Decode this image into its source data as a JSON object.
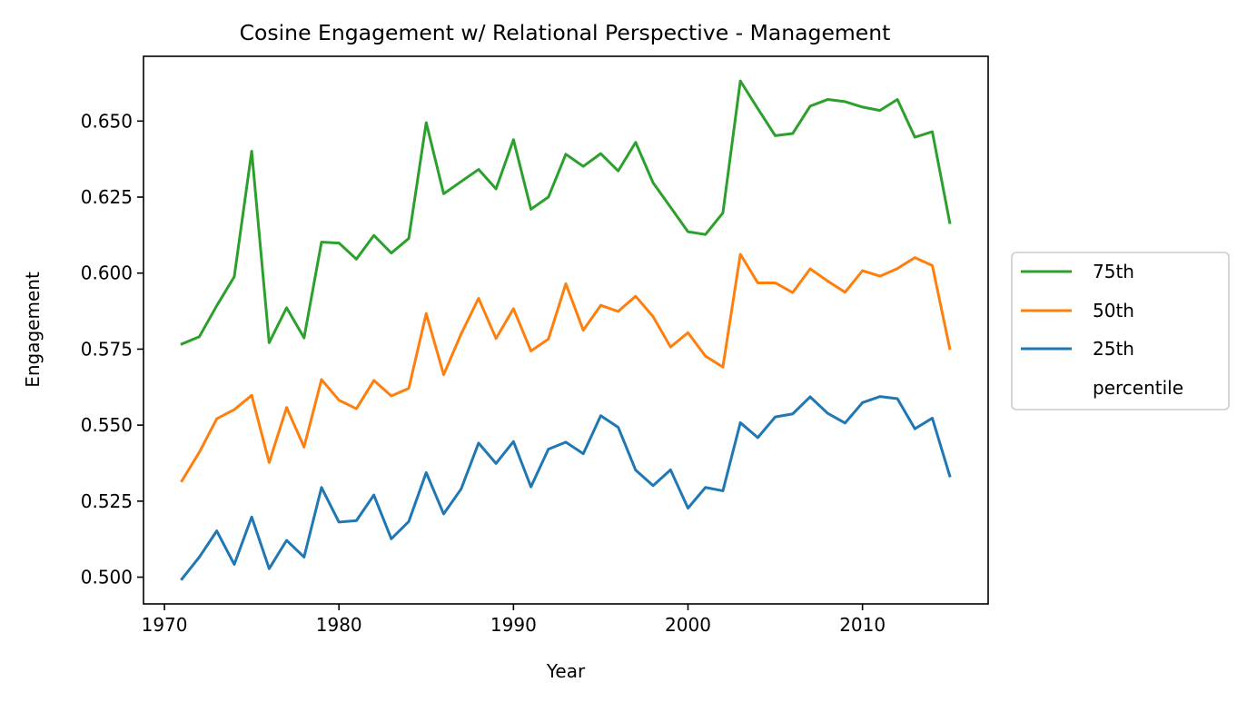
{
  "chart_data": {
    "type": "line",
    "title": "Cosine Engagement w/ Relational Perspective - Management",
    "xlabel": "Year",
    "ylabel": "Engagement",
    "xlim": [
      1968.8,
      2017.2
    ],
    "ylim": [
      0.4912,
      0.6713
    ],
    "xticks": [
      1970,
      1980,
      1990,
      2000,
      2010
    ],
    "xtick_labels": [
      "1970",
      "1980",
      "1990",
      "2000",
      "2010"
    ],
    "yticks": [
      0.5,
      0.525,
      0.55,
      0.575,
      0.6,
      0.625,
      0.65
    ],
    "ytick_labels": [
      "0.500",
      "0.525",
      "0.550",
      "0.575",
      "0.600",
      "0.625",
      "0.650"
    ],
    "grid": false,
    "legend": {
      "position": "center-right outside",
      "entries": [
        "75th",
        "50th",
        "25th"
      ],
      "extra_label": "percentile"
    },
    "x": [
      1971,
      1972,
      1973,
      1974,
      1975,
      1976,
      1977,
      1978,
      1979,
      1980,
      1981,
      1982,
      1983,
      1984,
      1985,
      1986,
      1987,
      1988,
      1989,
      1990,
      1991,
      1992,
      1993,
      1994,
      1995,
      1996,
      1997,
      1998,
      1999,
      2000,
      2001,
      2002,
      2003,
      2004,
      2005,
      2006,
      2007,
      2008,
      2009,
      2010,
      2011,
      2012,
      2013,
      2014,
      2015
    ],
    "series": [
      {
        "name": "75th",
        "color": "#2ca02c",
        "values": [
          0.5767,
          0.5791,
          0.5893,
          0.5988,
          0.6401,
          0.5771,
          0.5886,
          0.5787,
          0.6102,
          0.6099,
          0.6046,
          0.6124,
          0.6066,
          0.6114,
          0.6495,
          0.6261,
          0.6301,
          0.6341,
          0.6277,
          0.6439,
          0.621,
          0.625,
          0.6391,
          0.6351,
          0.6393,
          0.6336,
          0.643,
          0.6297,
          0.6217,
          0.6136,
          0.6127,
          0.6198,
          0.6632,
          0.6541,
          0.6452,
          0.6459,
          0.6549,
          0.6571,
          0.6564,
          0.6546,
          0.6535,
          0.6571,
          0.6447,
          0.6465,
          0.6166
        ]
      },
      {
        "name": "50th",
        "color": "#ff7f0e",
        "values": [
          0.5317,
          0.5411,
          0.5521,
          0.5551,
          0.5598,
          0.5377,
          0.5558,
          0.5428,
          0.565,
          0.5582,
          0.5554,
          0.5647,
          0.5596,
          0.5621,
          0.5867,
          0.5666,
          0.58,
          0.5917,
          0.5785,
          0.5883,
          0.5744,
          0.5783,
          0.5965,
          0.5812,
          0.5894,
          0.5874,
          0.5924,
          0.5857,
          0.5757,
          0.5804,
          0.5727,
          0.5691,
          0.6062,
          0.5968,
          0.5968,
          0.5936,
          0.6014,
          0.5974,
          0.5937,
          0.6008,
          0.599,
          0.6015,
          0.6051,
          0.6025,
          0.5752
        ]
      },
      {
        "name": "25th",
        "color": "#1f77b4",
        "values": [
          0.4994,
          0.5066,
          0.5152,
          0.5042,
          0.5198,
          0.5028,
          0.5121,
          0.5066,
          0.5295,
          0.5181,
          0.5186,
          0.527,
          0.5126,
          0.5183,
          0.5344,
          0.5208,
          0.529,
          0.5441,
          0.5374,
          0.5446,
          0.5297,
          0.5421,
          0.5444,
          0.5406,
          0.5531,
          0.5493,
          0.5352,
          0.5301,
          0.5353,
          0.5227,
          0.5295,
          0.5284,
          0.5508,
          0.5459,
          0.5527,
          0.5537,
          0.5593,
          0.5539,
          0.5507,
          0.5574,
          0.5594,
          0.5587,
          0.5488,
          0.5523,
          0.5333
        ]
      }
    ]
  }
}
